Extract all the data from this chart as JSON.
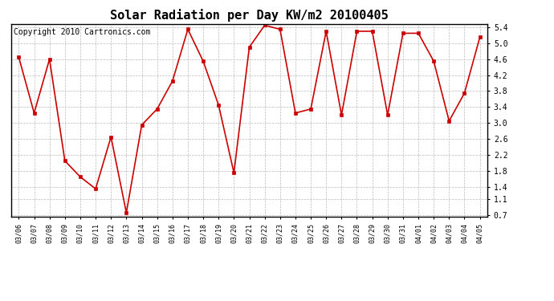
{
  "title": "Solar Radiation per Day KW/m2 20100405",
  "copyright": "Copyright 2010 Cartronics.com",
  "dates": [
    "03/06",
    "03/07",
    "03/08",
    "03/09",
    "03/10",
    "03/11",
    "03/12",
    "03/13",
    "03/14",
    "03/15",
    "03/16",
    "03/17",
    "03/18",
    "03/19",
    "03/20",
    "03/21",
    "03/22",
    "03/23",
    "03/24",
    "03/25",
    "03/26",
    "03/27",
    "03/28",
    "03/29",
    "03/30",
    "03/31",
    "04/01",
    "04/02",
    "04/03",
    "04/04",
    "04/05"
  ],
  "values": [
    4.65,
    3.25,
    4.6,
    2.05,
    1.65,
    1.35,
    2.65,
    0.75,
    2.95,
    3.35,
    4.05,
    5.35,
    4.55,
    3.45,
    1.75,
    4.9,
    5.45,
    5.35,
    3.25,
    3.35,
    5.3,
    3.2,
    5.3,
    5.3,
    3.2,
    5.25,
    5.25,
    4.55,
    3.05,
    3.75,
    5.15
  ],
  "line_color": "#cc0000",
  "marker": "s",
  "marker_size": 2.5,
  "ylim": [
    0.7,
    5.4
  ],
  "yticks": [
    0.7,
    1.1,
    1.4,
    1.8,
    2.2,
    2.6,
    3.0,
    3.4,
    3.8,
    4.2,
    4.6,
    5.0,
    5.4
  ],
  "bg_color": "#ffffff",
  "plot_bg_color": "#ffffff",
  "grid_color": "#bbbbbb",
  "title_fontsize": 11,
  "copyright_fontsize": 7,
  "xtick_fontsize": 6,
  "ytick_fontsize": 7
}
